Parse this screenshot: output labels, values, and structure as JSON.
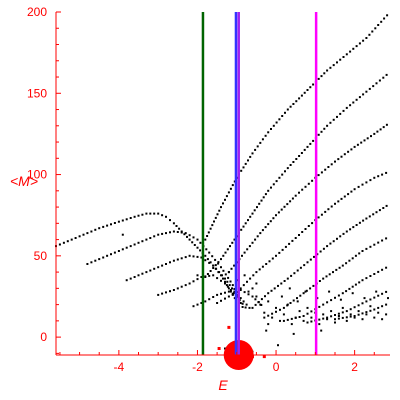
{
  "chart_data": {
    "type": "scatter",
    "xlabel": "E",
    "ylabel": "<M>",
    "xlim": [
      -5.6,
      2.9
    ],
    "ylim": [
      -11,
      200
    ],
    "x_ticks": [
      -4,
      -2,
      0,
      2
    ],
    "y_ticks": [
      0,
      50,
      100,
      150,
      200
    ],
    "grid": false,
    "colors": {
      "axes": "#ff0000",
      "points": "#000000",
      "marker": "#ff0000",
      "line_green": "#006400",
      "line_blue": "#3333ff",
      "line_purple": "#a020f0",
      "line_magenta": "#ff00ff"
    },
    "vertical_lines": [
      {
        "x": -1.86,
        "color": "#006400"
      },
      {
        "x": -1.02,
        "color": "#3333ff"
      },
      {
        "x": -0.95,
        "color": "#a020f0"
      },
      {
        "x": 1.02,
        "color": "#ff00ff"
      }
    ],
    "red_marker": {
      "x": -0.95,
      "y": -11
    },
    "series": [
      {
        "values": [
          [
            -5.6,
            56
          ],
          [
            -5.0,
            62
          ],
          [
            -4.5,
            67
          ],
          [
            -4.0,
            71
          ],
          [
            -3.6,
            74
          ],
          [
            -3.3,
            76
          ],
          [
            -3.0,
            76
          ],
          [
            -2.8,
            74
          ],
          [
            -2.6,
            70
          ],
          [
            -2.4,
            65
          ],
          [
            -2.2,
            60
          ],
          [
            -2.0,
            55
          ],
          [
            -1.8,
            50
          ],
          [
            -1.6,
            44
          ],
          [
            -1.4,
            38
          ],
          [
            -1.2,
            30
          ],
          [
            -1.0,
            22
          ]
        ]
      },
      {
        "values": [
          [
            -4.8,
            45
          ],
          [
            -4.3,
            50
          ],
          [
            -3.8,
            55
          ],
          [
            -3.4,
            59
          ],
          [
            -3.0,
            63
          ],
          [
            -2.6,
            65
          ],
          [
            -2.3,
            64
          ],
          [
            -2.0,
            60
          ],
          [
            -1.7,
            52
          ],
          [
            -1.4,
            43
          ],
          [
            -1.1,
            32
          ],
          [
            -0.9,
            20
          ]
        ]
      },
      {
        "values": [
          [
            -3.8,
            35
          ],
          [
            -3.4,
            39
          ],
          [
            -3.0,
            43
          ],
          [
            -2.6,
            47
          ],
          [
            -2.2,
            50
          ],
          [
            -1.9,
            49
          ],
          [
            -1.6,
            44
          ],
          [
            -1.3,
            36
          ],
          [
            -1.0,
            26
          ],
          [
            -0.8,
            16
          ]
        ]
      },
      {
        "values": [
          [
            -3.0,
            26
          ],
          [
            -2.6,
            29
          ],
          [
            -2.2,
            33
          ],
          [
            -1.9,
            37
          ],
          [
            -1.6,
            38
          ],
          [
            -1.3,
            33
          ],
          [
            -1.0,
            25
          ],
          [
            -0.7,
            16
          ]
        ]
      },
      {
        "values": [
          [
            -2.1,
            19
          ],
          [
            -1.8,
            22
          ],
          [
            -1.5,
            26
          ],
          [
            -1.2,
            28
          ],
          [
            -0.9,
            24
          ],
          [
            -0.6,
            16
          ]
        ]
      },
      {
        "values": [
          [
            -1.5,
            21
          ],
          [
            -1.2,
            25
          ],
          [
            -0.9,
            29
          ],
          [
            -0.6,
            25
          ],
          [
            -0.3,
            18
          ]
        ]
      },
      {
        "values": [
          [
            -1.8,
            37
          ],
          [
            -1.4,
            48
          ],
          [
            -1.0,
            62
          ],
          [
            -0.6,
            76
          ],
          [
            -0.2,
            90
          ],
          [
            0.3,
            104
          ],
          [
            0.8,
            117
          ],
          [
            1.3,
            130
          ],
          [
            1.8,
            141
          ],
          [
            2.3,
            151
          ],
          [
            2.9,
            163
          ]
        ]
      },
      {
        "values": [
          [
            -1.8,
            60
          ],
          [
            -1.4,
            80
          ],
          [
            -1.0,
            98
          ],
          [
            -0.6,
            113
          ],
          [
            -0.2,
            126
          ],
          [
            0.3,
            140
          ],
          [
            0.8,
            152
          ],
          [
            1.3,
            164
          ],
          [
            1.8,
            174
          ],
          [
            2.3,
            184
          ],
          [
            2.9,
            200
          ]
        ]
      },
      {
        "values": [
          [
            -1.2,
            40
          ],
          [
            -0.8,
            52
          ],
          [
            -0.4,
            64
          ],
          [
            0.0,
            75
          ],
          [
            0.5,
            87
          ],
          [
            1.0,
            98
          ],
          [
            1.5,
            108
          ],
          [
            2.0,
            117
          ],
          [
            2.5,
            125
          ],
          [
            2.9,
            132
          ]
        ]
      },
      {
        "values": [
          [
            -0.9,
            30
          ],
          [
            -0.5,
            40
          ],
          [
            0.0,
            50
          ],
          [
            0.5,
            61
          ],
          [
            1.0,
            72
          ],
          [
            1.5,
            82
          ],
          [
            2.0,
            91
          ],
          [
            2.5,
            98
          ],
          [
            2.9,
            102
          ]
        ]
      },
      {
        "values": [
          [
            -0.6,
            18
          ],
          [
            -0.2,
            27
          ],
          [
            0.3,
            36
          ],
          [
            0.8,
            46
          ],
          [
            1.3,
            56
          ],
          [
            1.8,
            65
          ],
          [
            2.3,
            73
          ],
          [
            2.9,
            82
          ]
        ]
      },
      {
        "values": [
          [
            -0.3,
            12
          ],
          [
            0.2,
            18
          ],
          [
            0.7,
            27
          ],
          [
            1.2,
            36
          ],
          [
            1.7,
            44
          ],
          [
            2.2,
            53
          ],
          [
            2.9,
            62
          ]
        ]
      },
      {
        "values": [
          [
            0.2,
            10
          ],
          [
            0.7,
            13
          ],
          [
            1.2,
            20
          ],
          [
            1.7,
            27
          ],
          [
            2.2,
            35
          ],
          [
            2.9,
            44
          ]
        ]
      },
      {
        "values": [
          [
            0.8,
            9
          ],
          [
            1.3,
            12
          ],
          [
            1.8,
            16
          ],
          [
            2.3,
            22
          ],
          [
            2.9,
            29
          ]
        ]
      },
      {
        "values": [
          [
            1.5,
            11
          ],
          [
            2.0,
            13
          ],
          [
            2.5,
            17
          ],
          [
            2.9,
            21
          ]
        ]
      }
    ],
    "scatter_points": [
      [
        -1.2,
        40
      ],
      [
        -1.0,
        35
      ],
      [
        -0.8,
        38
      ],
      [
        -0.6,
        30
      ],
      [
        -0.5,
        25
      ],
      [
        -0.4,
        20
      ],
      [
        -0.3,
        15
      ],
      [
        -0.2,
        22
      ],
      [
        -0.1,
        12
      ],
      [
        0.0,
        18
      ],
      [
        0.1,
        10
      ],
      [
        0.2,
        14
      ],
      [
        0.3,
        20
      ],
      [
        0.4,
        8
      ],
      [
        0.5,
        12
      ],
      [
        0.6,
        16
      ],
      [
        0.7,
        10
      ],
      [
        0.8,
        18
      ],
      [
        0.9,
        12
      ],
      [
        1.0,
        15
      ],
      [
        1.1,
        8
      ],
      [
        1.2,
        14
      ],
      [
        1.3,
        11
      ],
      [
        1.4,
        16
      ],
      [
        1.5,
        9
      ],
      [
        1.6,
        13
      ],
      [
        1.7,
        18
      ],
      [
        1.8,
        10
      ],
      [
        1.9,
        14
      ],
      [
        2.0,
        12
      ],
      [
        2.1,
        16
      ],
      [
        2.2,
        11
      ],
      [
        2.3,
        14
      ],
      [
        2.4,
        19
      ],
      [
        2.5,
        12
      ],
      [
        2.6,
        15
      ],
      [
        2.7,
        11
      ],
      [
        2.8,
        14
      ],
      [
        -0.7,
        28
      ],
      [
        -0.5,
        33
      ],
      [
        -0.2,
        8
      ],
      [
        0.15,
        25
      ],
      [
        0.35,
        30
      ],
      [
        0.55,
        22
      ],
      [
        0.75,
        28
      ],
      [
        1.05,
        24
      ],
      [
        1.35,
        28
      ],
      [
        1.65,
        23
      ],
      [
        1.95,
        27
      ],
      [
        2.25,
        24
      ],
      [
        2.55,
        28
      ],
      [
        2.85,
        24
      ],
      [
        -3.9,
        63
      ],
      [
        -2.0,
        38
      ],
      [
        -1.3,
        -7
      ],
      [
        -0.6,
        -9
      ],
      [
        -0.25,
        4
      ],
      [
        0.45,
        2
      ],
      [
        1.15,
        4
      ],
      [
        0.05,
        -5
      ]
    ]
  }
}
